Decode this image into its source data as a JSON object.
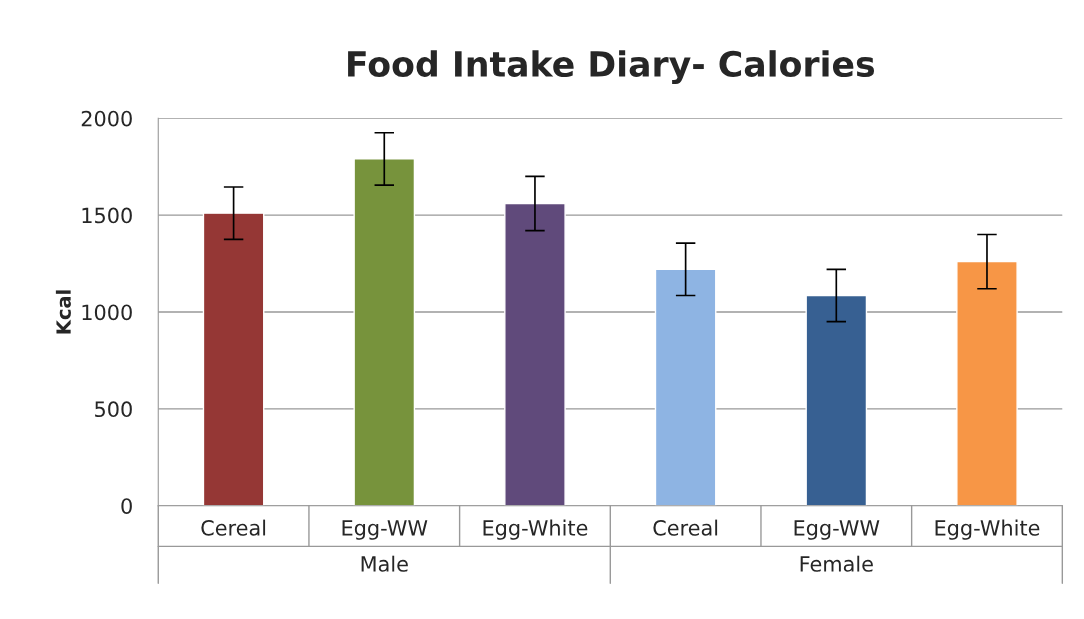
{
  "chart_data": {
    "type": "bar",
    "title": "Food Intake Diary- Calories",
    "ylabel": "Kcal",
    "categories": [
      "Cereal",
      "Egg-WW",
      "Egg-White",
      "Cereal",
      "Egg-WW",
      "Egg-White"
    ],
    "values": [
      1510,
      1790,
      1560,
      1220,
      1085,
      1260
    ],
    "errors": [
      135,
      135,
      140,
      135,
      135,
      140
    ],
    "colors": [
      "#953735",
      "#77933c",
      "#604a7b",
      "#8eb4e3",
      "#376092",
      "#f79646"
    ],
    "annotations": [
      "Male",
      "Female"
    ],
    "ylim": [
      0,
      2000
    ],
    "yticks": [
      0,
      500,
      1000,
      1500,
      2000
    ],
    "grid": "y"
  }
}
